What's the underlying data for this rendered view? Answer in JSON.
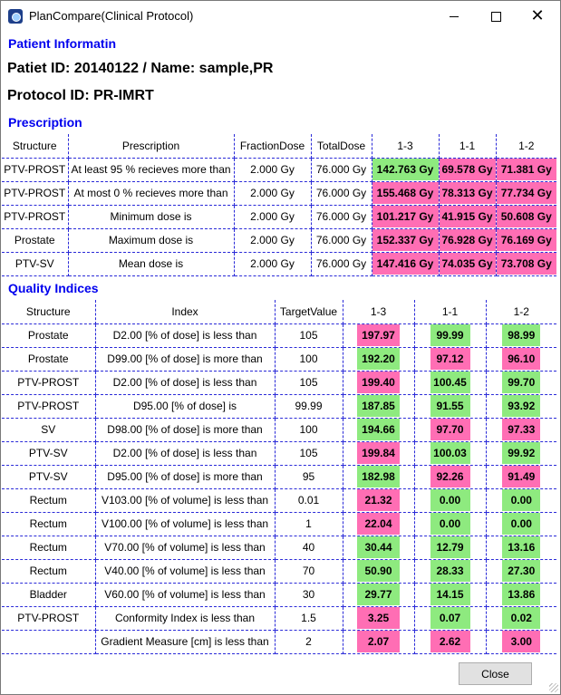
{
  "window": {
    "title": "PlanCompare(Clinical Protocol)"
  },
  "patient": {
    "section_label": "Patient Informatin",
    "id_line": "Patiet ID: 20140122 / Name: sample,PR",
    "protocol_line": "Protocol ID: PR-IMRT"
  },
  "prescription": {
    "section_label": "Prescription",
    "headers": [
      "Structure",
      "Prescription",
      "FractionDose",
      "TotalDose",
      "1-3",
      "1-1",
      "1-2"
    ],
    "rows": [
      {
        "structure": "PTV-PROST",
        "prescription": "At least 95 % recieves more than",
        "fraction": "2.000 Gy",
        "total": "76.000 Gy",
        "vals": [
          {
            "t": "142.763 Gy",
            "s": "green"
          },
          {
            "t": "69.578 Gy",
            "s": "pink"
          },
          {
            "t": "71.381 Gy",
            "s": "pink"
          }
        ]
      },
      {
        "structure": "PTV-PROST",
        "prescription": "At most 0 % recieves more than",
        "fraction": "2.000 Gy",
        "total": "76.000 Gy",
        "vals": [
          {
            "t": "155.468 Gy",
            "s": "pink"
          },
          {
            "t": "78.313 Gy",
            "s": "pink"
          },
          {
            "t": "77.734 Gy",
            "s": "pink"
          }
        ]
      },
      {
        "structure": "PTV-PROST",
        "prescription": "Minimum dose is",
        "fraction": "2.000 Gy",
        "total": "76.000 Gy",
        "vals": [
          {
            "t": "101.217 Gy",
            "s": "pink"
          },
          {
            "t": "41.915 Gy",
            "s": "pink"
          },
          {
            "t": "50.608 Gy",
            "s": "pink"
          }
        ]
      },
      {
        "structure": "Prostate",
        "prescription": "Maximum dose is",
        "fraction": "2.000 Gy",
        "total": "76.000 Gy",
        "vals": [
          {
            "t": "152.337 Gy",
            "s": "pink"
          },
          {
            "t": "76.928 Gy",
            "s": "pink"
          },
          {
            "t": "76.169 Gy",
            "s": "pink"
          }
        ]
      },
      {
        "structure": "PTV-SV",
        "prescription": "Mean dose is",
        "fraction": "2.000 Gy",
        "total": "76.000 Gy",
        "vals": [
          {
            "t": "147.416 Gy",
            "s": "pink"
          },
          {
            "t": "74.035 Gy",
            "s": "pink"
          },
          {
            "t": "73.708 Gy",
            "s": "pink"
          }
        ]
      }
    ]
  },
  "quality": {
    "section_label": "Quality Indices",
    "headers": [
      "Structure",
      "Index",
      "TargetValue",
      "1-3",
      "1-1",
      "1-2"
    ],
    "rows": [
      {
        "structure": "Prostate",
        "index": "D2.00 [% of dose] is less than",
        "target": "105",
        "vals": [
          {
            "t": "197.97",
            "s": "pink"
          },
          {
            "t": "99.99",
            "s": "green"
          },
          {
            "t": "98.99",
            "s": "green"
          }
        ]
      },
      {
        "structure": "Prostate",
        "index": "D99.00 [% of dose] is more than",
        "target": "100",
        "vals": [
          {
            "t": "192.20",
            "s": "green"
          },
          {
            "t": "97.12",
            "s": "pink"
          },
          {
            "t": "96.10",
            "s": "pink"
          }
        ]
      },
      {
        "structure": "PTV-PROST",
        "index": "D2.00 [% of dose] is less than",
        "target": "105",
        "vals": [
          {
            "t": "199.40",
            "s": "pink"
          },
          {
            "t": "100.45",
            "s": "green"
          },
          {
            "t": "99.70",
            "s": "green"
          }
        ]
      },
      {
        "structure": "PTV-PROST",
        "index": "D95.00 [% of dose] is",
        "target": "99.99",
        "vals": [
          {
            "t": "187.85",
            "s": "green"
          },
          {
            "t": "91.55",
            "s": "green"
          },
          {
            "t": "93.92",
            "s": "green"
          }
        ]
      },
      {
        "structure": "SV",
        "index": "D98.00 [% of dose] is more than",
        "target": "100",
        "vals": [
          {
            "t": "194.66",
            "s": "green"
          },
          {
            "t": "97.70",
            "s": "pink"
          },
          {
            "t": "97.33",
            "s": "pink"
          }
        ]
      },
      {
        "structure": "PTV-SV",
        "index": "D2.00 [% of dose] is less than",
        "target": "105",
        "vals": [
          {
            "t": "199.84",
            "s": "pink"
          },
          {
            "t": "100.03",
            "s": "green"
          },
          {
            "t": "99.92",
            "s": "green"
          }
        ]
      },
      {
        "structure": "PTV-SV",
        "index": "D95.00 [% of dose] is more than",
        "target": "95",
        "vals": [
          {
            "t": "182.98",
            "s": "green"
          },
          {
            "t": "92.26",
            "s": "pink"
          },
          {
            "t": "91.49",
            "s": "pink"
          }
        ]
      },
      {
        "structure": "Rectum",
        "index": "V103.00 [% of volume] is less than",
        "target": "0.01",
        "vals": [
          {
            "t": "21.32",
            "s": "pink"
          },
          {
            "t": "0.00",
            "s": "green"
          },
          {
            "t": "0.00",
            "s": "green"
          }
        ]
      },
      {
        "structure": "Rectum",
        "index": "V100.00 [% of volume] is less than",
        "target": "1",
        "vals": [
          {
            "t": "22.04",
            "s": "pink"
          },
          {
            "t": "0.00",
            "s": "green"
          },
          {
            "t": "0.00",
            "s": "green"
          }
        ]
      },
      {
        "structure": "Rectum",
        "index": "V70.00 [% of volume] is less than",
        "target": "40",
        "vals": [
          {
            "t": "30.44",
            "s": "green"
          },
          {
            "t": "12.79",
            "s": "green"
          },
          {
            "t": "13.16",
            "s": "green"
          }
        ]
      },
      {
        "structure": "Rectum",
        "index": "V40.00 [% of volume] is less than",
        "target": "70",
        "vals": [
          {
            "t": "50.90",
            "s": "green"
          },
          {
            "t": "28.33",
            "s": "green"
          },
          {
            "t": "27.30",
            "s": "green"
          }
        ]
      },
      {
        "structure": "Bladder",
        "index": "V60.00 [% of volume] is less than",
        "target": "30",
        "vals": [
          {
            "t": "29.77",
            "s": "green"
          },
          {
            "t": "14.15",
            "s": "green"
          },
          {
            "t": "13.86",
            "s": "green"
          }
        ]
      },
      {
        "structure": "PTV-PROST",
        "index": "Conformity Index is less than",
        "target": "1.5",
        "vals": [
          {
            "t": "3.25",
            "s": "pink"
          },
          {
            "t": "0.07",
            "s": "green"
          },
          {
            "t": "0.02",
            "s": "green"
          }
        ]
      },
      {
        "structure": "",
        "index": "Gradient Measure [cm] is less than",
        "target": "2",
        "vals": [
          {
            "t": "2.07",
            "s": "pink"
          },
          {
            "t": "2.62",
            "s": "pink"
          },
          {
            "t": "3.00",
            "s": "pink"
          }
        ]
      }
    ]
  },
  "buttons": {
    "close_label": "Close"
  },
  "colors": {
    "pass": "#8eea7f",
    "fail": "#ff6eb4",
    "section": "#0000ee",
    "gridline": "#2a2ad8"
  }
}
